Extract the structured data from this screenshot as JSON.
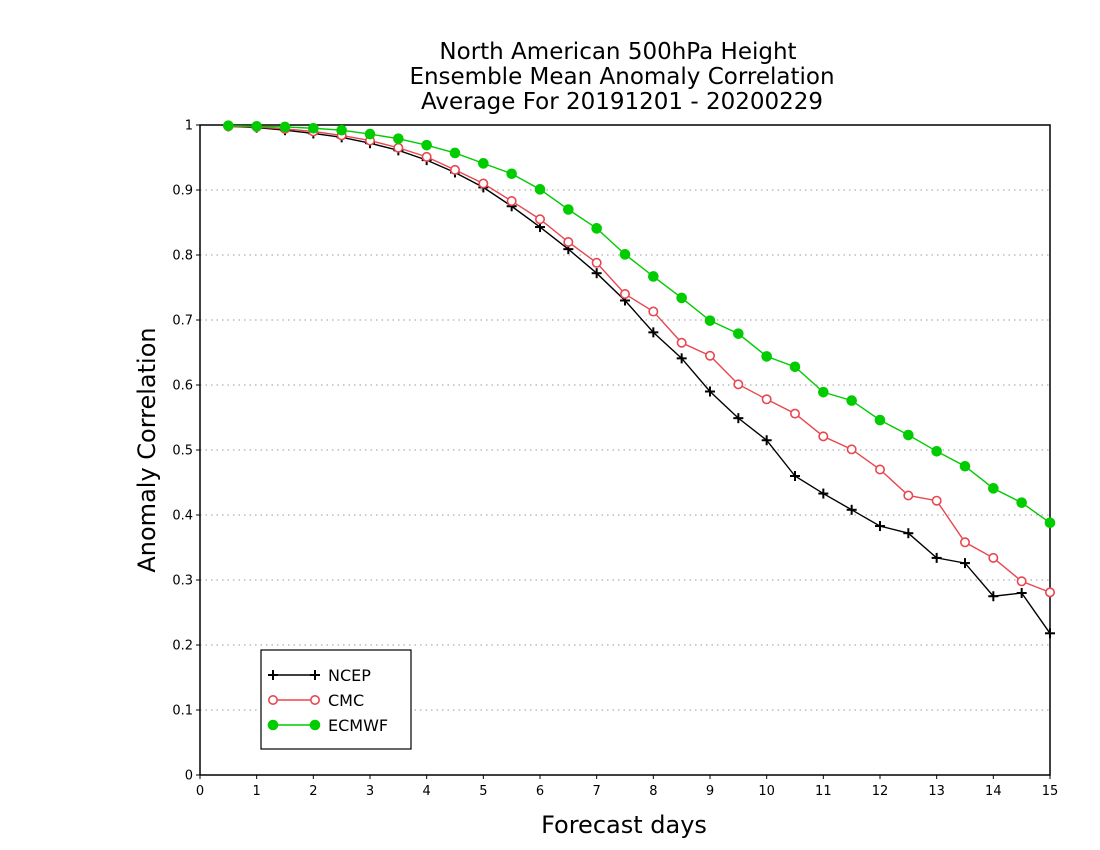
{
  "chart_data": {
    "type": "line",
    "title": [
      "North American 500hPa Height",
      "Ensemble Mean Anomaly Correlation",
      "Average For 20191201 - 20200229"
    ],
    "xlabel": "Forecast days",
    "ylabel": "Anomaly Correlation",
    "xlim": [
      0,
      15
    ],
    "ylim": [
      0,
      1
    ],
    "xticks": [
      "0",
      "1",
      "2",
      "3",
      "4",
      "5",
      "6",
      "7",
      "8",
      "9",
      "10",
      "11",
      "12",
      "13",
      "14",
      "15"
    ],
    "yticks": [
      "0",
      "0.1",
      "0.2",
      "0.3",
      "0.4",
      "0.5",
      "0.6",
      "0.7",
      "0.8",
      "0.9",
      "1"
    ],
    "grid": "horizontal dotted",
    "legend_position": "bottom-left",
    "x": [
      0.5,
      1,
      1.5,
      2,
      2.5,
      3,
      3.5,
      4,
      4.5,
      5,
      5.5,
      6,
      6.5,
      7,
      7.5,
      8,
      8.5,
      9,
      9.5,
      10,
      10.5,
      11,
      11.5,
      12,
      12.5,
      13,
      13.5,
      14,
      14.5,
      15
    ],
    "series": [
      {
        "name": "NCEP",
        "color": "#000000",
        "marker": "plus",
        "values": [
          0.998,
          0.996,
          0.992,
          0.987,
          0.981,
          0.972,
          0.961,
          0.946,
          0.927,
          0.904,
          0.875,
          0.843,
          0.809,
          0.772,
          0.73,
          0.681,
          0.641,
          0.59,
          0.549,
          0.515,
          0.46,
          0.433,
          0.408,
          0.383,
          0.372,
          0.334,
          0.326,
          0.275,
          0.28,
          0.218
        ]
      },
      {
        "name": "CMC",
        "color": "#e8474f",
        "marker": "open-circle",
        "values": [
          0.998,
          0.997,
          0.994,
          0.99,
          0.984,
          0.976,
          0.965,
          0.951,
          0.931,
          0.91,
          0.883,
          0.855,
          0.82,
          0.788,
          0.74,
          0.713,
          0.665,
          0.645,
          0.601,
          0.578,
          0.556,
          0.521,
          0.501,
          0.47,
          0.43,
          0.422,
          0.358,
          0.334,
          0.298,
          0.281
        ]
      },
      {
        "name": "ECMWF",
        "color": "#00cc00",
        "marker": "filled-circle",
        "values": [
          0.999,
          0.998,
          0.997,
          0.995,
          0.992,
          0.986,
          0.979,
          0.969,
          0.957,
          0.941,
          0.925,
          0.901,
          0.87,
          0.841,
          0.801,
          0.767,
          0.734,
          0.699,
          0.679,
          0.644,
          0.628,
          0.589,
          0.576,
          0.546,
          0.523,
          0.498,
          0.475,
          0.441,
          0.419,
          0.388
        ]
      }
    ]
  }
}
